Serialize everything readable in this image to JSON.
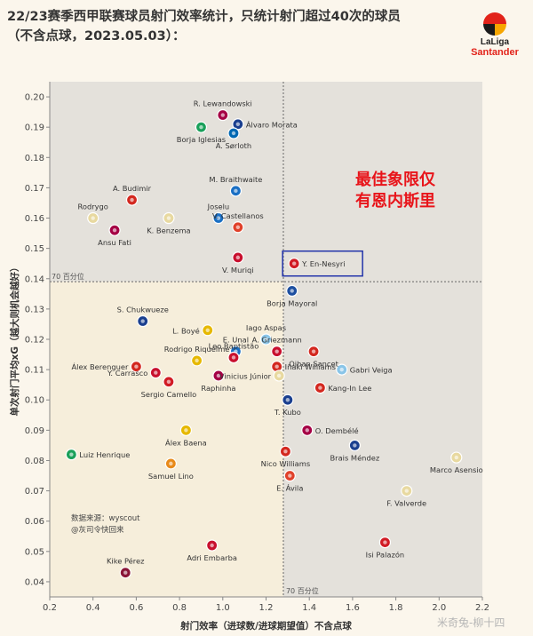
{
  "header": {
    "title_line1": "22/23赛季西甲联赛球员射门效率统计，只统计射门超过40次的球员",
    "title_line2": "（不含点球，2023.05.03）："
  },
  "logo": {
    "icon": "laliga-logo-icon",
    "brand1": "LaLiga",
    "brand2": "Santander"
  },
  "watermark": "米奇兔-柳十四",
  "chart_data": {
    "type": "scatter",
    "xlabel": "射门效率（进球数/进球期望值）不含点球",
    "ylabel": "单次射门平均xG（越大则机会越好）",
    "xlim": [
      0.2,
      2.2
    ],
    "ylim": [
      0.035,
      0.205
    ],
    "xticks": [
      "0.2",
      "0.4",
      "0.6",
      "0.8",
      "1.0",
      "1.2",
      "1.4",
      "1.6",
      "1.8",
      "2.0",
      "2.2"
    ],
    "yticks": [
      "0.04",
      "0.05",
      "0.06",
      "0.07",
      "0.08",
      "0.09",
      "0.10",
      "0.11",
      "0.12",
      "0.13",
      "0.14",
      "0.15",
      "0.16",
      "0.17",
      "0.18",
      "0.19",
      "0.20"
    ],
    "x_median": 1.28,
    "y_median": 0.139,
    "x_median_label": "70 百分位",
    "y_median_label": "70 百分位",
    "annotation": {
      "text_line1": "最佳象限仅",
      "text_line2": "有恩内斯里",
      "color": "#e8141a",
      "box_color": "#2233aa",
      "highlight_player": "Y. En-Nesyri"
    },
    "source_line1": "数据来源：wyscout",
    "source_line2": "@灰司令快回来",
    "points": [
      {
        "name": "R. Lewandowski",
        "x": 1.0,
        "y": 0.194,
        "color": "#a50044",
        "label_pos": "above"
      },
      {
        "name": "Álvaro Morata",
        "x": 1.07,
        "y": 0.191,
        "color": "#1a3f8f",
        "label_pos": "right"
      },
      {
        "name": "Borja Iglesias",
        "x": 0.9,
        "y": 0.19,
        "color": "#1aa05a",
        "label_pos": "below"
      },
      {
        "name": "A. Sørloth",
        "x": 1.05,
        "y": 0.188,
        "color": "#0068b3",
        "label_pos": "below"
      },
      {
        "name": "M. Braithwaite",
        "x": 1.06,
        "y": 0.169,
        "color": "#1a6fc4",
        "label_pos": "above"
      },
      {
        "name": "A. Budimir",
        "x": 0.58,
        "y": 0.166,
        "color": "#d3281f",
        "label_pos": "above"
      },
      {
        "name": "Rodrygo",
        "x": 0.4,
        "y": 0.16,
        "color": "#e8d9a0",
        "label_pos": "above"
      },
      {
        "name": "Joselu",
        "x": 0.98,
        "y": 0.16,
        "color": "#1a6fc4",
        "label_pos": "above"
      },
      {
        "name": "K. Benzema",
        "x": 0.75,
        "y": 0.16,
        "color": "#e8d9a0",
        "label_pos": "below"
      },
      {
        "name": "Ansu Fati",
        "x": 0.5,
        "y": 0.156,
        "color": "#a50044",
        "label_pos": "below"
      },
      {
        "name": "V. Castellanos",
        "x": 1.07,
        "y": 0.157,
        "color": "#e0412a",
        "label_pos": "above"
      },
      {
        "name": "V. Muriqi",
        "x": 1.07,
        "y": 0.147,
        "color": "#c8102e",
        "label_pos": "below"
      },
      {
        "name": "Y. En-Nesyri",
        "x": 1.33,
        "y": 0.145,
        "color": "#d11b24",
        "label_pos": "right"
      },
      {
        "name": "Borja Mayoral",
        "x": 1.32,
        "y": 0.136,
        "color": "#1d4fa0",
        "label_pos": "below"
      },
      {
        "name": "S. Chukwueze",
        "x": 0.63,
        "y": 0.126,
        "color": "#1a3f8f",
        "label_pos": "above"
      },
      {
        "name": "L. Boyé",
        "x": 0.93,
        "y": 0.123,
        "color": "#e6b800",
        "label_pos": "left"
      },
      {
        "name": "E. Unal",
        "x": 1.06,
        "y": 0.116,
        "color": "#1a6fc4",
        "label_pos": "above"
      },
      {
        "name": "Iago Aspas",
        "x": 1.2,
        "y": 0.12,
        "color": "#8ac5e8",
        "label_pos": "above"
      },
      {
        "name": "A. Griezmann",
        "x": 1.25,
        "y": 0.116,
        "color": "#c8102e",
        "label_pos": "above"
      },
      {
        "name": "Oihan Sancet",
        "x": 1.42,
        "y": 0.116,
        "color": "#d3281f",
        "label_pos": "below"
      },
      {
        "name": "Rodrigo Riquelme",
        "x": 0.88,
        "y": 0.113,
        "color": "#e6b800",
        "label_pos": "above"
      },
      {
        "name": "Leo Baptistão",
        "x": 1.05,
        "y": 0.114,
        "color": "#c8102e",
        "label_pos": "above"
      },
      {
        "name": "Álex Berenguer",
        "x": 0.6,
        "y": 0.111,
        "color": "#d3281f",
        "label_pos": "left"
      },
      {
        "name": "Iñaki Williams",
        "x": 1.25,
        "y": 0.111,
        "color": "#d3281f",
        "label_pos": "right"
      },
      {
        "name": "Gabri Veiga",
        "x": 1.55,
        "y": 0.11,
        "color": "#8ac5e8",
        "label_pos": "right"
      },
      {
        "name": "Y. Carrasco",
        "x": 0.69,
        "y": 0.109,
        "color": "#c8102e",
        "label_pos": "left"
      },
      {
        "name": "Sergio Camello",
        "x": 0.75,
        "y": 0.106,
        "color": "#d11b24",
        "label_pos": "below"
      },
      {
        "name": "Raphinha",
        "x": 0.98,
        "y": 0.108,
        "color": "#a50044",
        "label_pos": "below"
      },
      {
        "name": "Vinicius Júnior",
        "x": 1.26,
        "y": 0.108,
        "color": "#e8d9a0",
        "label_pos": "left"
      },
      {
        "name": "Kang-In Lee",
        "x": 1.45,
        "y": 0.104,
        "color": "#d3281f",
        "label_pos": "right"
      },
      {
        "name": "T. Kubo",
        "x": 1.3,
        "y": 0.1,
        "color": "#1a3f8f",
        "label_pos": "below"
      },
      {
        "name": "O. Dembélé",
        "x": 1.39,
        "y": 0.09,
        "color": "#a50044",
        "label_pos": "right"
      },
      {
        "name": "Álex Baena",
        "x": 0.83,
        "y": 0.09,
        "color": "#e6b800",
        "label_pos": "below"
      },
      {
        "name": "Brais Méndez",
        "x": 1.61,
        "y": 0.085,
        "color": "#1a3f8f",
        "label_pos": "below"
      },
      {
        "name": "Nico Williams",
        "x": 1.29,
        "y": 0.083,
        "color": "#d3281f",
        "label_pos": "below"
      },
      {
        "name": "Marco Asensio",
        "x": 2.08,
        "y": 0.081,
        "color": "#e8d9a0",
        "label_pos": "below"
      },
      {
        "name": "Luiz Henrique",
        "x": 0.3,
        "y": 0.082,
        "color": "#1aa05a",
        "label_pos": "right"
      },
      {
        "name": "Samuel Lino",
        "x": 0.76,
        "y": 0.079,
        "color": "#e88a1a",
        "label_pos": "below"
      },
      {
        "name": "E. Ávila",
        "x": 1.31,
        "y": 0.075,
        "color": "#e0412a",
        "label_pos": "below"
      },
      {
        "name": "F. Valverde",
        "x": 1.85,
        "y": 0.07,
        "color": "#e8d9a0",
        "label_pos": "below"
      },
      {
        "name": "Adri Embarba",
        "x": 0.95,
        "y": 0.052,
        "color": "#c8102e",
        "label_pos": "below"
      },
      {
        "name": "Isi Palazón",
        "x": 1.75,
        "y": 0.053,
        "color": "#d11b24",
        "label_pos": "below"
      },
      {
        "name": "Kike Pérez",
        "x": 0.55,
        "y": 0.043,
        "color": "#8a1538",
        "label_pos": "above"
      }
    ]
  }
}
